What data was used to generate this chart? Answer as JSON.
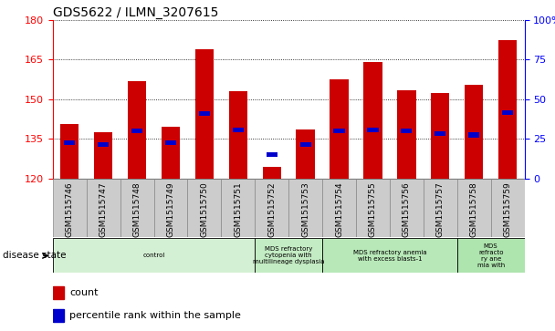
{
  "title": "GDS5622 / ILMN_3207615",
  "samples": [
    "GSM1515746",
    "GSM1515747",
    "GSM1515748",
    "GSM1515749",
    "GSM1515750",
    "GSM1515751",
    "GSM1515752",
    "GSM1515753",
    "GSM1515754",
    "GSM1515755",
    "GSM1515756",
    "GSM1515757",
    "GSM1515758",
    "GSM1515759"
  ],
  "counts": [
    140.5,
    137.5,
    157.0,
    139.5,
    169.0,
    153.0,
    124.5,
    138.5,
    157.5,
    164.0,
    153.5,
    152.5,
    155.5,
    172.5
  ],
  "percentile_values": [
    133.5,
    133.0,
    138.0,
    133.5,
    144.5,
    138.5,
    129.0,
    133.0,
    138.0,
    138.5,
    138.0,
    137.0,
    136.5,
    145.0
  ],
  "ylim_left": [
    120,
    180
  ],
  "ylim_right": [
    0,
    100
  ],
  "yticks_left": [
    120,
    135,
    150,
    165,
    180
  ],
  "yticks_right": [
    0,
    25,
    50,
    75,
    100
  ],
  "bar_color": "#cc0000",
  "blue_color": "#0000cc",
  "bar_width": 0.55,
  "disease_groups": [
    {
      "label": "control",
      "start": 0,
      "end": 6,
      "color": "#d4f0d4"
    },
    {
      "label": "MDS refractory\ncytopenia with\nmultilineage dysplasia",
      "start": 6,
      "end": 8,
      "color": "#c8eec8"
    },
    {
      "label": "MDS refractory anemia\nwith excess blasts-1",
      "start": 8,
      "end": 12,
      "color": "#c0ecc0"
    },
    {
      "label": "MDS\nrefracto\nry ane\nmia with",
      "start": 12,
      "end": 14,
      "color": "#b8e8b8"
    }
  ],
  "disease_state_label": "disease state",
  "legend_count_label": "count",
  "legend_percentile_label": "percentile rank within the sample",
  "xtick_bg_color": "#cccccc",
  "background_color": "#ffffff"
}
